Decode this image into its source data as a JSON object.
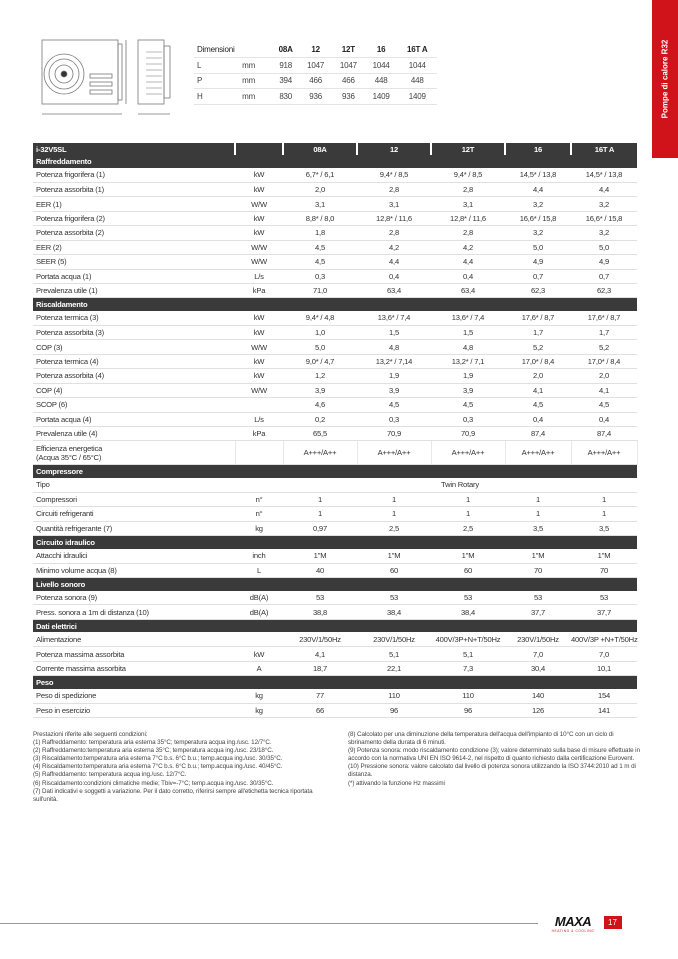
{
  "side_tab": "Pompe di calore R32",
  "dimensions": {
    "title": "Dimensioni",
    "models": [
      "08A",
      "12",
      "12T",
      "16",
      "16T A"
    ],
    "rows": [
      {
        "label": "L",
        "unit": "mm",
        "values": [
          "918",
          "1047",
          "1047",
          "1044",
          "1044"
        ]
      },
      {
        "label": "P",
        "unit": "mm",
        "values": [
          "394",
          "466",
          "466",
          "448",
          "448"
        ]
      },
      {
        "label": "H",
        "unit": "mm",
        "values": [
          "830",
          "936",
          "936",
          "1409",
          "1409"
        ]
      }
    ]
  },
  "table": {
    "model_series": "i-32V5SL",
    "models": [
      "08A",
      "12",
      "12T",
      "16",
      "16T A"
    ],
    "sections": [
      {
        "title": "Raffreddamento",
        "rows": [
          {
            "label": "Potenza frigorifera  (1)",
            "unit": "kW",
            "values": [
              "6,7* / 6,1",
              "9,4* / 8,5",
              "9,4* / 8,5",
              "14,5* / 13,8",
              "14,5* / 13,8"
            ]
          },
          {
            "label": "Potenza assorbita  (1)",
            "unit": "kW",
            "values": [
              "2,0",
              "2,8",
              "2,8",
              "4,4",
              "4,4"
            ]
          },
          {
            "label": "EER (1)",
            "unit": "W/W",
            "values": [
              "3,1",
              "3,1",
              "3,1",
              "3,2",
              "3,2"
            ]
          },
          {
            "label": "Potenza frigorifera  (2)",
            "unit": "kW",
            "values": [
              "8,8* / 8,0",
              "12,8* / 11,6",
              "12,8* / 11,6",
              "16,6* / 15,8",
              "16,6* / 15,8"
            ]
          },
          {
            "label": "Potenza assorbita  (2)",
            "unit": "kW",
            "values": [
              "1,8",
              "2,8",
              "2,8",
              "3,2",
              "3,2"
            ]
          },
          {
            "label": "EER (2)",
            "unit": "W/W",
            "values": [
              "4,5",
              "4,2",
              "4,2",
              "5,0",
              "5,0"
            ]
          },
          {
            "label": "SEER (5)",
            "unit": "W/W",
            "values": [
              "4,5",
              "4,4",
              "4,4",
              "4,9",
              "4,9"
            ]
          },
          {
            "label": "Portata acqua  (1)",
            "unit": "L/s",
            "values": [
              "0,3",
              "0,4",
              "0,4",
              "0,7",
              "0,7"
            ]
          },
          {
            "label": "Prevalenza utile   (1)",
            "unit": "kPa",
            "values": [
              "71,0",
              "63,4",
              "63,4",
              "62,3",
              "62,3"
            ]
          }
        ]
      },
      {
        "title": "Riscaldamento",
        "rows": [
          {
            "label": "Potenza termica (3)",
            "unit": "kW",
            "values": [
              "9,4* / 4,8",
              "13,6* / 7,4",
              "13,6* / 7,4",
              "17,6* / 8,7",
              "17,6* / 8,7"
            ]
          },
          {
            "label": "Potenza assorbita (3)",
            "unit": "kW",
            "values": [
              "1,0",
              "1,5",
              "1,5",
              "1,7",
              "1,7"
            ]
          },
          {
            "label": "COP (3)",
            "unit": "W/W",
            "values": [
              "5,0",
              "4,8",
              "4,8",
              "5,2",
              "5,2"
            ]
          },
          {
            "label": "Potenza termica (4)",
            "unit": "kW",
            "values": [
              "9,0* / 4,7",
              "13,2* / 7,14",
              "13,2* / 7,1",
              "17,0* / 8,4",
              "17,0* / 8,4"
            ]
          },
          {
            "label": "Potenza assorbita (4)",
            "unit": "kW",
            "values": [
              "1,2",
              "1,9",
              "1,9",
              "2,0",
              "2,0"
            ]
          },
          {
            "label": "COP (4)",
            "unit": "W/W",
            "values": [
              "3,9",
              "3,9",
              "3,9",
              "4,1",
              "4,1"
            ]
          },
          {
            "label": "SCOP (6)",
            "unit": "",
            "values": [
              "4,6",
              "4,5",
              "4,5",
              "4,5",
              "4,5"
            ]
          },
          {
            "label": "Portata acqua  (4)",
            "unit": "L/s",
            "values": [
              "0,2",
              "0,3",
              "0,3",
              "0,4",
              "0,4"
            ]
          },
          {
            "label": "Prevalenza utile  (4)",
            "unit": "kPa",
            "values": [
              "65,5",
              "70,9",
              "70,9",
              "87,4",
              "87,4"
            ]
          },
          {
            "label": "Efficienza energetica",
            "label2": "(Acqua 35°C / 65°C)",
            "unit": "",
            "values": [
              "A+++/A++",
              "A+++/A++",
              "A+++/A++",
              "A+++/A++",
              "A+++/A++"
            ]
          }
        ]
      },
      {
        "title": "Compressore",
        "rows": [
          {
            "label": "Tipo",
            "unit": "",
            "span": "Twin Rotary"
          },
          {
            "label": "Compressori",
            "unit": "n°",
            "values": [
              "1",
              "1",
              "1",
              "1",
              "1"
            ]
          },
          {
            "label": "Circuiti refrigeranti",
            "unit": "n°",
            "values": [
              "1",
              "1",
              "1",
              "1",
              "1"
            ]
          },
          {
            "label": "Quantità refrigerante  (7)",
            "unit": "kg",
            "values": [
              "0,97",
              "2,5",
              "2,5",
              "3,5",
              "3,5"
            ]
          }
        ]
      },
      {
        "title": "Circuito idraulico",
        "rows": [
          {
            "label": "Attacchi idraulici",
            "unit": "inch",
            "values": [
              "1\"M",
              "1\"M",
              "1\"M",
              "1\"M",
              "1\"M"
            ]
          },
          {
            "label": "Minimo volume acqua (8)",
            "unit": "L",
            "values": [
              "40",
              "60",
              "60",
              "70",
              "70"
            ]
          }
        ]
      },
      {
        "title": "Livello sonoro",
        "rows": [
          {
            "label": "Potenza sonora  (9)",
            "unit": "dB(A)",
            "values": [
              "53",
              "53",
              "53",
              "53",
              "53"
            ]
          },
          {
            "label": "Press. sonora a 1m di distanza  (10)",
            "unit": "dB(A)",
            "values": [
              "38,8",
              "38,4",
              "38,4",
              "37,7",
              "37,7"
            ]
          }
        ]
      },
      {
        "title": "Dati elettrici",
        "rows": [
          {
            "label": "Alimentazione",
            "unit": "",
            "values": [
              "230V/1/50Hz",
              "230V/1/50Hz",
              "400V/3P+N+T/50Hz",
              "230V/1/50Hz",
              "400V/3P +N+T/50Hz"
            ]
          },
          {
            "label": "Potenza massima assorbita",
            "unit": "kW",
            "values": [
              "4,1",
              "5,1",
              "5,1",
              "7,0",
              "7,0"
            ]
          },
          {
            "label": "Corrente massima assorbita",
            "unit": "A",
            "values": [
              "18,7",
              "22,1",
              "7,3",
              "30,4",
              "10,1"
            ]
          }
        ]
      },
      {
        "title": "Peso",
        "rows": [
          {
            "label": "Peso di spedizione",
            "unit": "kg",
            "values": [
              "77",
              "110",
              "110",
              "140",
              "154"
            ]
          },
          {
            "label": "Peso in esercizio",
            "unit": "kg",
            "values": [
              "66",
              "96",
              "96",
              "126",
              "141"
            ]
          }
        ]
      }
    ]
  },
  "notes_left": [
    "Prestazioni riferite alle seguenti condizioni:",
    "(1) Raffreddamento: temperatura aria esterna 35°C; temperatura acqua ing./usc. 12/7°C.",
    "(2) Raffreddamento:temperatura aria esterna 35°C; temperatura acqua ing./usc. 23/18°C.",
    "(3) Riscaldamento:temperatura aria esterna 7°C b.s. 6°C b.u.; temp.acqua ing./usc. 30/35°C.",
    "(4) Riscaldamento:temperatura aria esterna 7°C b.s. 6°C b.u.; temp.acqua ing./usc. 40/45°C.",
    "(5) Raffreddamento: temperatura acqua ing./usc. 12/7°C.",
    "(6) Riscaldamento:condizioni climatiche medie; Tbiv=-7°C; temp.acqua ing./usc. 30/35°C.",
    "(7) Dati indicativi e soggetti a variazione. Per il dato corretto, riferirsi sempre all'etichetta tecnica riportata sull'unità."
  ],
  "notes_right": [
    "(8) Calcolato per una diminuzione della temperatura dell'acqua dell'impianto di 10°C con un ciclo di sbrinamento della durata di 6 minuti.",
    "(9) Potenza sonora: modo riscaldamento condizione (3); valore determinato sulla base di misure effettuate in accordo con la normativa UNI EN ISO 9614-2, nel rispetto di quanto richiesto dalla certificazione Eurovent.",
    "(10) Pressione sonora: valore calcolato dal livello di potenza sonora utilizzando la ISO 3744:2010 ad 1 m di distanza.",
    "(*) attivando la funzione Hz massimi"
  ],
  "footer": {
    "brand": "MAXA",
    "brand_tagline": "HEATING & COOLING",
    "page_number": "17"
  },
  "colors": {
    "accent": "#d0121b",
    "header_bg": "#3a3a3a"
  }
}
